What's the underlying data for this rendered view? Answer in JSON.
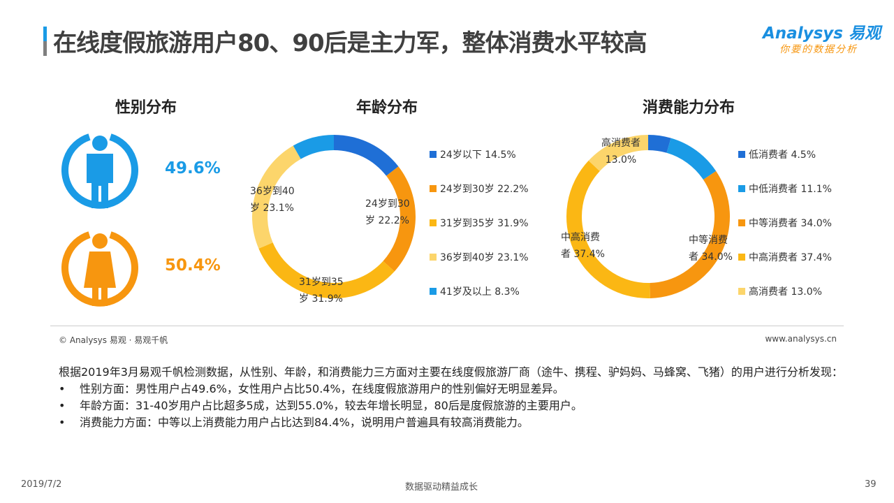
{
  "header": {
    "title": "在线度假旅游用户80、90后是主力军，整体消费水平较高",
    "logo_main": "Analysys 易观",
    "logo_sub": "你要的数据分析"
  },
  "gender": {
    "title": "性别分布",
    "male_pct": "49.6%",
    "female_pct": "50.4%",
    "male_color": "#1a9be6",
    "female_color": "#f7960f"
  },
  "chart_data": [
    {
      "type": "pie",
      "donut": true,
      "title": "年龄分布",
      "categories": [
        "24岁以下",
        "24岁到30岁",
        "31岁到35岁",
        "36岁到40岁",
        "41岁及以上"
      ],
      "values": [
        14.5,
        22.2,
        31.9,
        23.1,
        8.3
      ],
      "colors": [
        "#1f6fd6",
        "#f7960f",
        "#fbb714",
        "#fcd56b",
        "#1a9be6"
      ],
      "legend": [
        "24岁以下 14.5%",
        "24岁到30岁 22.2%",
        "31岁到35岁 31.9%",
        "36岁到40岁 23.1%",
        "41岁及以上 8.3%"
      ],
      "data_labels": [
        {
          "l1": "24岁到30",
          "l2": "岁 22.2%"
        },
        {
          "l1": "31岁到35",
          "l2": "岁 31.9%"
        },
        {
          "l1": "36岁到40",
          "l2": "岁 23.1%"
        }
      ],
      "legend_position": "right"
    },
    {
      "type": "pie",
      "donut": true,
      "title": "消费能力分布",
      "categories": [
        "低消费者",
        "中低消费者",
        "中等消费者",
        "中高消费者",
        "高消费者"
      ],
      "values": [
        4.5,
        11.1,
        34.0,
        37.4,
        13.0
      ],
      "colors": [
        "#1f6fd6",
        "#1a9be6",
        "#f7960f",
        "#fbb714",
        "#fcd56b"
      ],
      "legend": [
        "低消费者 4.5%",
        "中低消费者 11.1%",
        "中等消费者 34.0%",
        "中高消费者 37.4%",
        "高消费者 13.0%"
      ],
      "data_labels": [
        {
          "l1": "高消费者",
          "l2": "13.0%"
        },
        {
          "l1": "中高消费",
          "l2": "者 37.4%"
        },
        {
          "l1": "中等消费",
          "l2": "者 34.0%"
        }
      ],
      "legend_position": "right"
    }
  ],
  "source": {
    "left": "© Analysys 易观 · 易观千帆",
    "right": "www.analysys.cn"
  },
  "body": {
    "intro": "根据2019年3月易观千帆检测数据，从性别、年龄，和消费能力三方面对主要在线度假旅游厂商（途牛、携程、驴妈妈、马蜂窝、飞猪）的用户进行分析发现：",
    "bullets": [
      "性别方面：男性用户占49.6%，女性用户占比50.4%，在线度假旅游用户的性别偏好无明显差异。",
      "年龄方面：31-40岁用户占比超多5成，达到55.0%，较去年增长明显，80后是度假旅游的主要用户。",
      "消费能力方面：中等以上消费能力用户占比达到84.4%，说明用户普遍具有较高消费能力。"
    ]
  },
  "footer": {
    "date": "2019/7/2",
    "slogan": "数据驱动精益成长",
    "page": "39"
  }
}
